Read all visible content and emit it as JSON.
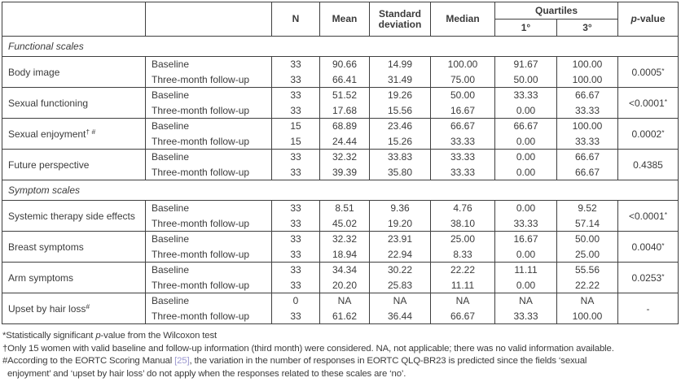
{
  "header": {
    "n": "N",
    "mean": "Mean",
    "sd": "Standard deviation",
    "median": "Median",
    "quartiles": "Quartiles",
    "q1": "1°",
    "q3": "3°",
    "p_italic": "p",
    "p_suffix": "-value"
  },
  "labels": {
    "baseline": "Baseline",
    "followup": "Three-month follow-up"
  },
  "sections": [
    {
      "label": "Functional scales"
    },
    {
      "label": "Symptom scales"
    }
  ],
  "rows": [
    {
      "scale": "Body image",
      "sup": "",
      "b": {
        "n": "33",
        "mean": "90.66",
        "sd": "14.99",
        "med": "100.00",
        "q1": "91.67",
        "q3": "100.00"
      },
      "f": {
        "n": "33",
        "mean": "66.41",
        "sd": "31.49",
        "med": "75.00",
        "q1": "50.00",
        "q3": "100.00"
      },
      "pv": "0.0005",
      "pm": "*"
    },
    {
      "scale": "Sexual functioning",
      "sup": "",
      "b": {
        "n": "33",
        "mean": "51.52",
        "sd": "19.26",
        "med": "50.00",
        "q1": "33.33",
        "q3": "66.67"
      },
      "f": {
        "n": "33",
        "mean": "17.68",
        "sd": "15.56",
        "med": "16.67",
        "q1": "0.00",
        "q3": "33.33"
      },
      "pv": "<0.0001",
      "pm": "*"
    },
    {
      "scale": "Sexual enjoyment",
      "sup": "† #",
      "b": {
        "n": "15",
        "mean": "68.89",
        "sd": "23.46",
        "med": "66.67",
        "q1": "66.67",
        "q3": "100.00"
      },
      "f": {
        "n": "15",
        "mean": "24.44",
        "sd": "15.26",
        "med": "33.33",
        "q1": "0.00",
        "q3": "33.33"
      },
      "pv": "0.0002",
      "pm": "*"
    },
    {
      "scale": "Future perspective",
      "sup": "",
      "b": {
        "n": "33",
        "mean": "32.32",
        "sd": "33.83",
        "med": "33.33",
        "q1": "0.00",
        "q3": "66.67"
      },
      "f": {
        "n": "33",
        "mean": "39.39",
        "sd": "35.80",
        "med": "33.33",
        "q1": "0.00",
        "q3": "66.67"
      },
      "pv": "0.4385",
      "pm": ""
    },
    {
      "scale": "Systemic therapy side effects",
      "sup": "",
      "b": {
        "n": "33",
        "mean": "8.51",
        "sd": "9.36",
        "med": "4.76",
        "q1": "0.00",
        "q3": "9.52"
      },
      "f": {
        "n": "33",
        "mean": "45.02",
        "sd": "19.20",
        "med": "38.10",
        "q1": "33.33",
        "q3": "57.14"
      },
      "pv": "<0.0001",
      "pm": "*"
    },
    {
      "scale": "Breast symptoms",
      "sup": "",
      "b": {
        "n": "33",
        "mean": "32.32",
        "sd": "23.91",
        "med": "25.00",
        "q1": "16.67",
        "q3": "50.00"
      },
      "f": {
        "n": "33",
        "mean": "18.94",
        "sd": "22.94",
        "med": "8.33",
        "q1": "0.00",
        "q3": "25.00"
      },
      "pv": "0.0040",
      "pm": "*"
    },
    {
      "scale": "Arm symptoms",
      "sup": "",
      "b": {
        "n": "33",
        "mean": "34.34",
        "sd": "30.22",
        "med": "22.22",
        "q1": "11.11",
        "q3": "55.56"
      },
      "f": {
        "n": "33",
        "mean": "20.20",
        "sd": "25.83",
        "med": "11.11",
        "q1": "0.00",
        "q3": "22.22"
      },
      "pv": "0.0253",
      "pm": "*"
    },
    {
      "scale": "Upset by hair loss",
      "sup": "#",
      "b": {
        "n": "0",
        "mean": "NA",
        "sd": "NA",
        "med": "NA",
        "q1": "NA",
        "q3": "NA"
      },
      "f": {
        "n": "33",
        "mean": "61.62",
        "sd": "36.44",
        "med": "66.67",
        "q1": "33.33",
        "q3": "100.00"
      },
      "pv": "-",
      "pm": ""
    }
  ],
  "footnotes": {
    "f1": {
      "pre": "*Statistically significant ",
      "italic": "p",
      "post": "-value from the Wilcoxon test"
    },
    "f2": "†Only 15 women with valid baseline and follow-up information (third month) were considered. NA, not applicable; there was no valid information available.",
    "f3": {
      "pre": "#According to the EORTC Scoring Manual ",
      "link": "[25]",
      "post": ", the variation in the number of responses in EORTC QLQ-BR23 is predicted since the fields ‘sexual"
    },
    "f3_line2": "enjoyment’ and ‘upset by hair loss’ do not apply when the responses related to these scales are ‘no’."
  }
}
